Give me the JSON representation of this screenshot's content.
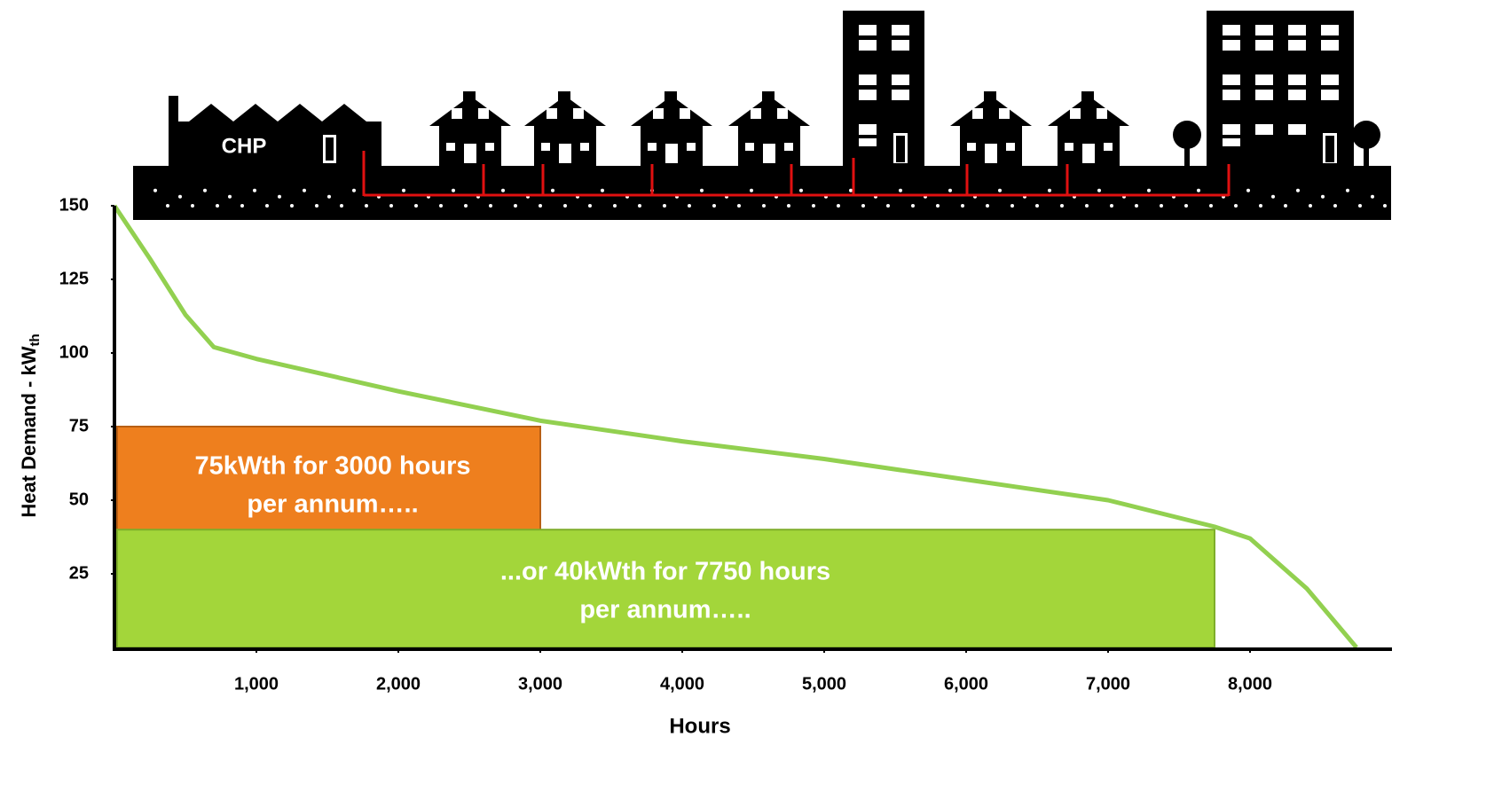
{
  "chart_data": {
    "type": "line",
    "xlabel": "Hours",
    "ylabel": "Heat Demand - kW",
    "ylabel_sub": "th",
    "illustration_label": "CHP",
    "xlim": [
      0,
      9000
    ],
    "ylim": [
      0,
      150
    ],
    "xticks": [
      {
        "value": 1000,
        "label": "1,000"
      },
      {
        "value": 2000,
        "label": "2,000"
      },
      {
        "value": 3000,
        "label": "3,000"
      },
      {
        "value": 4000,
        "label": "4,000"
      },
      {
        "value": 5000,
        "label": "5,000"
      },
      {
        "value": 6000,
        "label": "6,000"
      },
      {
        "value": 7000,
        "label": "7,000"
      },
      {
        "value": 8000,
        "label": "8,000"
      }
    ],
    "yticks": [
      25,
      50,
      75,
      100,
      125,
      150
    ],
    "series": [
      {
        "name": "Heat demand",
        "color": "#92d050",
        "x": [
          0,
          250,
          500,
          700,
          1000,
          2000,
          3000,
          4000,
          5000,
          6000,
          7000,
          7750,
          8000,
          8400,
          8750
        ],
        "values": [
          150,
          132,
          113,
          102,
          98,
          87,
          77,
          70,
          64,
          57,
          50,
          41,
          37,
          20,
          0
        ]
      }
    ],
    "bands": [
      {
        "lines": [
          "75kWth for 3000 hours",
          "per annum….."
        ],
        "x_end": 3000,
        "y_top": 75,
        "color": "#ee7f1e"
      },
      {
        "lines": [
          "...or 40kWth for 7750 hours",
          "per annum….."
        ],
        "x_end": 7750,
        "y_top": 40,
        "color": "#a3d63a"
      }
    ]
  }
}
